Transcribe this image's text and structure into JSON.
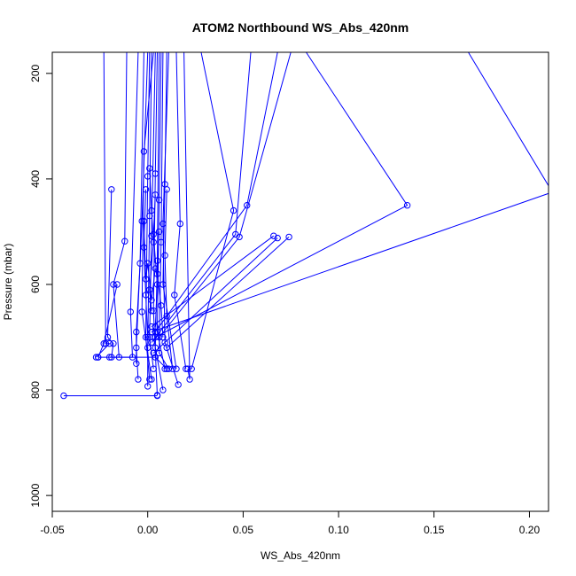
{
  "chart_data": {
    "type": "line",
    "title": "ATOM2 Northbound WS_Abs_420nm",
    "xlabel": "WS_Abs_420nm",
    "ylabel": "Pressure (mbar)",
    "xlim": [
      -0.05,
      0.21
    ],
    "ylim": [
      1030,
      160
    ],
    "y_reversed": true,
    "x_ticks": [
      {
        "value": -0.05,
        "label": "-0.05"
      },
      {
        "value": 0.0,
        "label": "0.00"
      },
      {
        "value": 0.05,
        "label": "0.05"
      },
      {
        "value": 0.1,
        "label": "0.10"
      },
      {
        "value": 0.15,
        "label": "0.15"
      },
      {
        "value": 0.2,
        "label": "0.20"
      }
    ],
    "y_ticks": [
      {
        "value": 200,
        "label": "200"
      },
      {
        "value": 400,
        "label": "400"
      },
      {
        "value": 600,
        "label": "600"
      },
      {
        "value": 800,
        "label": "800"
      },
      {
        "value": 1000,
        "label": "1000"
      }
    ],
    "series_color": "#0000ff",
    "marker": "open-circle",
    "grid": false,
    "legend": "none",
    "series": [
      {
        "points": [
          [
            -0.023,
            160
          ],
          [
            -0.022,
            712
          ],
          [
            -0.02,
            712
          ],
          [
            -0.027,
            738
          ]
        ]
      },
      {
        "points": [
          [
            -0.019,
            420
          ],
          [
            -0.021,
            700
          ],
          [
            -0.018,
            712
          ],
          [
            -0.019,
            738
          ]
        ]
      },
      {
        "points": [
          [
            -0.011,
            160
          ],
          [
            -0.012,
            518
          ],
          [
            -0.018,
            600
          ],
          [
            -0.015,
            738
          ]
        ]
      },
      {
        "points": [
          [
            -0.016,
            600
          ],
          [
            -0.023,
            712
          ],
          [
            -0.026,
            738
          ]
        ]
      },
      {
        "points": [
          [
            -0.005,
            160
          ],
          [
            -0.009,
            652
          ],
          [
            -0.008,
            738
          ],
          [
            -0.02,
            738
          ]
        ]
      },
      {
        "points": [
          [
            -0.002,
            160
          ],
          [
            -0.004,
            560
          ],
          [
            -0.006,
            690
          ],
          [
            -0.006,
            750
          ]
        ]
      },
      {
        "points": [
          [
            0.0,
            160
          ],
          [
            -0.003,
            480
          ],
          [
            -0.006,
            720
          ],
          [
            -0.005,
            780
          ]
        ]
      },
      {
        "points": [
          [
            0.001,
            160
          ],
          [
            0.0,
            395
          ],
          [
            -0.001,
            700
          ],
          [
            0.001,
            780
          ]
        ]
      },
      {
        "points": [
          [
            0.002,
            160
          ],
          [
            0.001,
            470
          ],
          [
            0.0,
            720
          ],
          [
            0.0,
            793
          ]
        ]
      },
      {
        "points": [
          [
            0.003,
            160
          ],
          [
            -0.002,
            348
          ],
          [
            -0.003,
            652
          ],
          [
            0.002,
            780
          ]
        ]
      },
      {
        "points": [
          [
            0.004,
            160
          ],
          [
            0.002,
            508
          ],
          [
            0.001,
            700
          ],
          [
            0.003,
            760
          ]
        ]
      },
      {
        "points": [
          [
            0.005,
            160
          ],
          [
            0.004,
            390
          ],
          [
            0.003,
            650
          ],
          [
            0.005,
            810
          ]
        ]
      },
      {
        "points": [
          [
            0.006,
            160
          ],
          [
            0.005,
            555
          ],
          [
            0.004,
            720
          ],
          [
            0.008,
            800
          ]
        ]
      },
      {
        "points": [
          [
            0.007,
            160
          ],
          [
            0.006,
            440
          ],
          [
            0.005,
            690
          ],
          [
            0.009,
            760
          ]
        ]
      },
      {
        "points": [
          [
            0.008,
            160
          ],
          [
            0.007,
            520
          ],
          [
            0.006,
            730
          ],
          [
            0.011,
            760
          ]
        ]
      },
      {
        "points": [
          [
            0.01,
            160
          ],
          [
            0.009,
            410
          ],
          [
            0.008,
            600
          ],
          [
            0.015,
            760
          ]
        ]
      },
      {
        "points": [
          [
            0.011,
            160
          ],
          [
            0.008,
            485
          ],
          [
            0.009,
            710
          ],
          [
            0.016,
            790
          ]
        ]
      },
      {
        "points": [
          [
            0.015,
            160
          ],
          [
            0.017,
            485
          ],
          [
            0.014,
            620
          ],
          [
            0.02,
            760
          ]
        ]
      },
      {
        "points": [
          [
            0.019,
            160
          ],
          [
            0.022,
            780
          ],
          [
            0.021,
            760
          ]
        ]
      },
      {
        "points": [
          [
            0.028,
            160
          ],
          [
            0.045,
            460
          ],
          [
            0.023,
            760
          ]
        ]
      },
      {
        "points": [
          [
            0.054,
            160
          ],
          [
            0.046,
            505
          ],
          [
            0.002,
            710
          ]
        ]
      },
      {
        "points": [
          [
            0.068,
            160
          ],
          [
            0.052,
            450
          ],
          [
            0.004,
            690
          ]
        ]
      },
      {
        "points": [
          [
            0.075,
            160
          ],
          [
            0.048,
            510
          ],
          [
            0.006,
            700
          ]
        ]
      },
      {
        "points": [
          [
            0.066,
            508
          ],
          [
            0.002,
            680
          ]
        ]
      },
      {
        "points": [
          [
            0.068,
            512
          ],
          [
            0.003,
            730
          ]
        ]
      },
      {
        "points": [
          [
            0.074,
            510
          ],
          [
            0.01,
            720
          ]
        ]
      },
      {
        "points": [
          [
            0.083,
            160
          ],
          [
            0.136,
            450
          ],
          [
            0.004,
            700
          ]
        ]
      },
      {
        "points": [
          [
            0.168,
            160
          ],
          [
            0.212,
            425
          ],
          [
            0.002,
            690
          ]
        ]
      },
      {
        "points": [
          [
            -0.044,
            811
          ],
          [
            0.005,
            811
          ]
        ]
      },
      {
        "points": [
          [
            -0.026,
            738
          ],
          [
            0.004,
            738
          ],
          [
            0.01,
            760
          ]
        ]
      },
      {
        "points": [
          [
            -0.002,
            480
          ],
          [
            -0.001,
            590
          ],
          [
            0.0,
            560
          ],
          [
            0.002,
            630
          ],
          [
            0.004,
            570
          ]
        ]
      },
      {
        "points": [
          [
            0.001,
            380
          ],
          [
            0.002,
            460
          ],
          [
            0.003,
            520
          ],
          [
            0.001,
            610
          ],
          [
            0.002,
            650
          ]
        ]
      },
      {
        "points": [
          [
            0.006,
            500
          ],
          [
            0.005,
            580
          ],
          [
            0.007,
            640
          ],
          [
            0.008,
            700
          ]
        ]
      },
      {
        "points": [
          [
            0.01,
            420
          ],
          [
            0.009,
            545
          ],
          [
            0.01,
            660
          ],
          [
            0.013,
            760
          ]
        ]
      },
      {
        "points": [
          [
            -0.001,
            420
          ],
          [
            -0.002,
            530
          ],
          [
            -0.001,
            620
          ],
          [
            0.0,
            700
          ]
        ]
      },
      {
        "points": [
          [
            0.004,
            430
          ],
          [
            0.003,
            505
          ],
          [
            0.005,
            600
          ],
          [
            0.004,
            680
          ]
        ]
      }
    ]
  }
}
